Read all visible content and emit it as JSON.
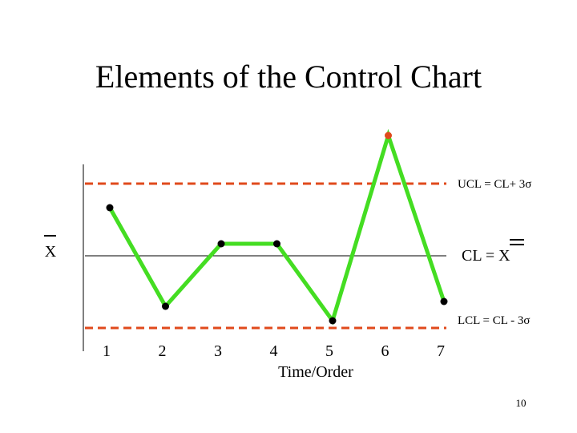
{
  "slide": {
    "title": "Elements of the Control Chart",
    "page_number": "10"
  },
  "chart_data": {
    "type": "line",
    "xlabel": "Time/Order",
    "x": [
      1,
      2,
      3,
      4,
      5,
      6,
      7
    ],
    "y": [
      2.0,
      -2.1,
      0.5,
      0.5,
      -2.7,
      5.0,
      -1.9
    ],
    "ylim": [
      -5,
      6
    ],
    "center_line": {
      "value": 0,
      "label": "CL = X",
      "axis_label": "X"
    },
    "ucl": {
      "value": 3,
      "label": "UCL = CL+ 3σ"
    },
    "lcl": {
      "value": -3,
      "label": "LCL = CL - 3σ"
    },
    "grid": false,
    "legend": "none",
    "colors": {
      "series": "#44dd22",
      "limits": "#e04a1c",
      "out_of_control_point": "#e04a1c",
      "point": "#000000"
    }
  }
}
